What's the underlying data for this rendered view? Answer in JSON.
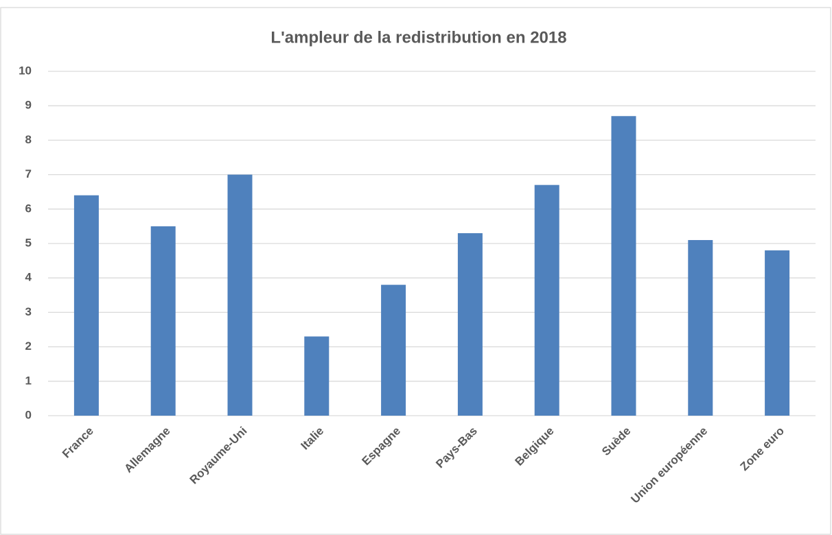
{
  "chart_data": {
    "type": "bar",
    "title": "L'ampleur de la redistribution en 2018",
    "categories": [
      "France",
      "Allemagne",
      "Royaume-Uni",
      "Italie",
      "Espagne",
      "Pays-Bas",
      "Belgique",
      "Suède",
      "Union européenne",
      "Zone euro"
    ],
    "values": [
      6.4,
      5.5,
      7.0,
      2.3,
      3.8,
      5.3,
      6.7,
      8.7,
      5.1,
      4.8
    ],
    "color": "#4f81bd",
    "ylim": [
      0,
      10
    ],
    "yticks": [
      0,
      1,
      2,
      3,
      4,
      5,
      6,
      7,
      8,
      9,
      10
    ],
    "grid": true
  }
}
